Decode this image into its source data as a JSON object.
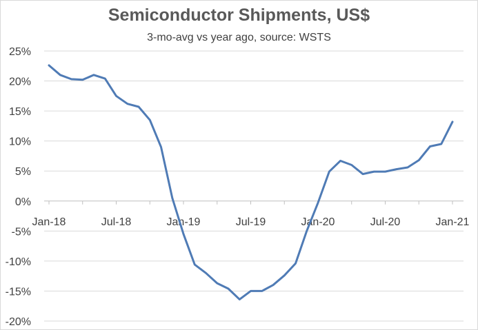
{
  "chart_data": {
    "type": "line",
    "title": "Semiconductor Shipments, US$",
    "subtitle": "3-mo-avg vs year ago, source: WSTS",
    "xlabel": "",
    "ylabel": "",
    "ylim": [
      -0.2,
      0.25
    ],
    "y_ticks": [
      0.25,
      0.2,
      0.15,
      0.1,
      0.05,
      0.0,
      -0.05,
      -0.1,
      -0.15,
      -0.2
    ],
    "y_tick_labels": [
      "25%",
      "20%",
      "15%",
      "10%",
      "5%",
      "0%",
      "-5%",
      "-10%",
      "-15%",
      "-20%"
    ],
    "x_tick_labels": [
      "Jan-18",
      "Jul-18",
      "Jan-19",
      "Jul-19",
      "Jan-20",
      "Jul-20",
      "Jan-21"
    ],
    "x_tick_positions": [
      "2018-01",
      "2018-07",
      "2019-01",
      "2019-07",
      "2020-01",
      "2020-07",
      "2021-01"
    ],
    "grid": "horizontal",
    "line_color": "#4F7BB5",
    "series": [
      {
        "x": [
          "2018-01",
          "2018-02",
          "2018-03",
          "2018-04",
          "2018-05",
          "2018-06",
          "2018-07",
          "2018-08",
          "2018-09",
          "2018-10",
          "2018-11",
          "2018-12",
          "2019-01",
          "2019-02",
          "2019-03",
          "2019-04",
          "2019-05",
          "2019-06",
          "2019-07",
          "2019-08",
          "2019-09",
          "2019-10",
          "2019-11",
          "2019-12",
          "2020-01",
          "2020-02",
          "2020-03",
          "2020-04",
          "2020-05",
          "2020-06",
          "2020-07",
          "2020-08",
          "2020-09",
          "2020-10",
          "2020-11",
          "2020-12",
          "2021-01"
        ],
        "values": [
          0.226,
          0.21,
          0.203,
          0.202,
          0.21,
          0.204,
          0.175,
          0.162,
          0.157,
          0.135,
          0.09,
          0.005,
          -0.055,
          -0.106,
          -0.12,
          -0.137,
          -0.146,
          -0.164,
          -0.15,
          -0.15,
          -0.14,
          -0.124,
          -0.104,
          -0.05,
          -0.003,
          0.049,
          0.067,
          0.06,
          0.045,
          0.049,
          0.049,
          0.053,
          0.056,
          0.068,
          0.091,
          0.095,
          0.132
        ]
      }
    ]
  }
}
